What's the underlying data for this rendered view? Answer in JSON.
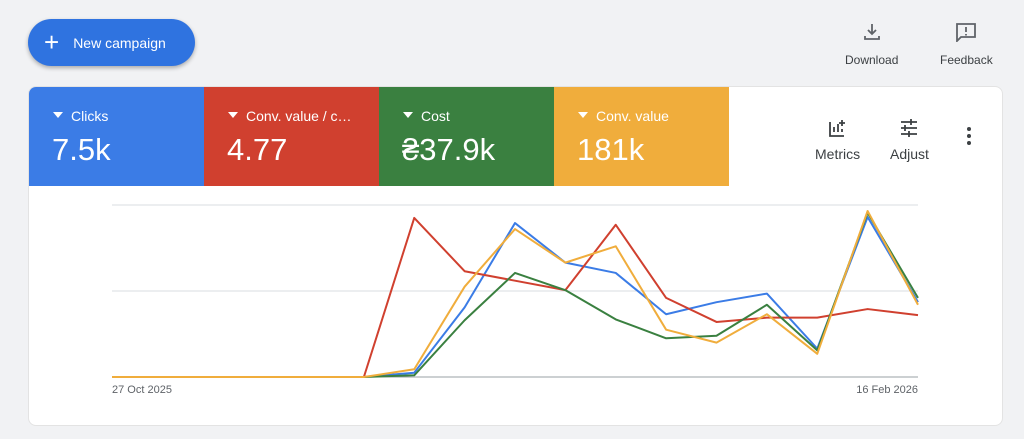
{
  "header": {
    "button": "New campaign",
    "download": "Download",
    "feedback": "Feedback"
  },
  "toolbar": {
    "metrics": "Metrics",
    "adjust": "Adjust"
  },
  "chart_data": {
    "type": "line",
    "categories": [
      "27 Oct 2025",
      null,
      null,
      null,
      null,
      null,
      null,
      null,
      null,
      null,
      null,
      null,
      null,
      null,
      null,
      null,
      "16 Feb 2026"
    ],
    "ylim": [
      0,
      2
    ],
    "yticks": [
      0,
      1,
      2
    ],
    "grid": true,
    "series": [
      {
        "name": "Clicks",
        "total": "7.5k",
        "color": "#3b7ce6",
        "values": [
          0,
          0,
          0,
          0,
          0,
          0,
          0.05,
          0.81,
          1.79,
          1.33,
          1.21,
          0.73,
          0.87,
          0.97,
          0.33,
          1.86,
          0.87
        ]
      },
      {
        "name": "Conv. value / c…",
        "total": "4.77",
        "color": "#d0402f",
        "values": [
          0,
          0,
          0,
          0,
          0,
          0,
          1.85,
          1.23,
          1.12,
          1.01,
          1.77,
          0.92,
          0.64,
          0.69,
          0.69,
          0.79,
          0.72
        ]
      },
      {
        "name": "Cost",
        "total": "₴37.9k",
        "color": "#3a8040",
        "values": [
          0,
          0,
          0,
          0,
          0,
          0,
          0.02,
          0.66,
          1.21,
          1.01,
          0.67,
          0.45,
          0.48,
          0.84,
          0.31,
          1.91,
          0.92
        ]
      },
      {
        "name": "Conv. value",
        "total": "181k",
        "color": "#f0ad3c",
        "values": [
          0,
          0,
          0,
          0,
          0,
          0,
          0.09,
          1.05,
          1.72,
          1.33,
          1.52,
          0.55,
          0.4,
          0.73,
          0.27,
          1.93,
          0.84
        ]
      }
    ]
  }
}
